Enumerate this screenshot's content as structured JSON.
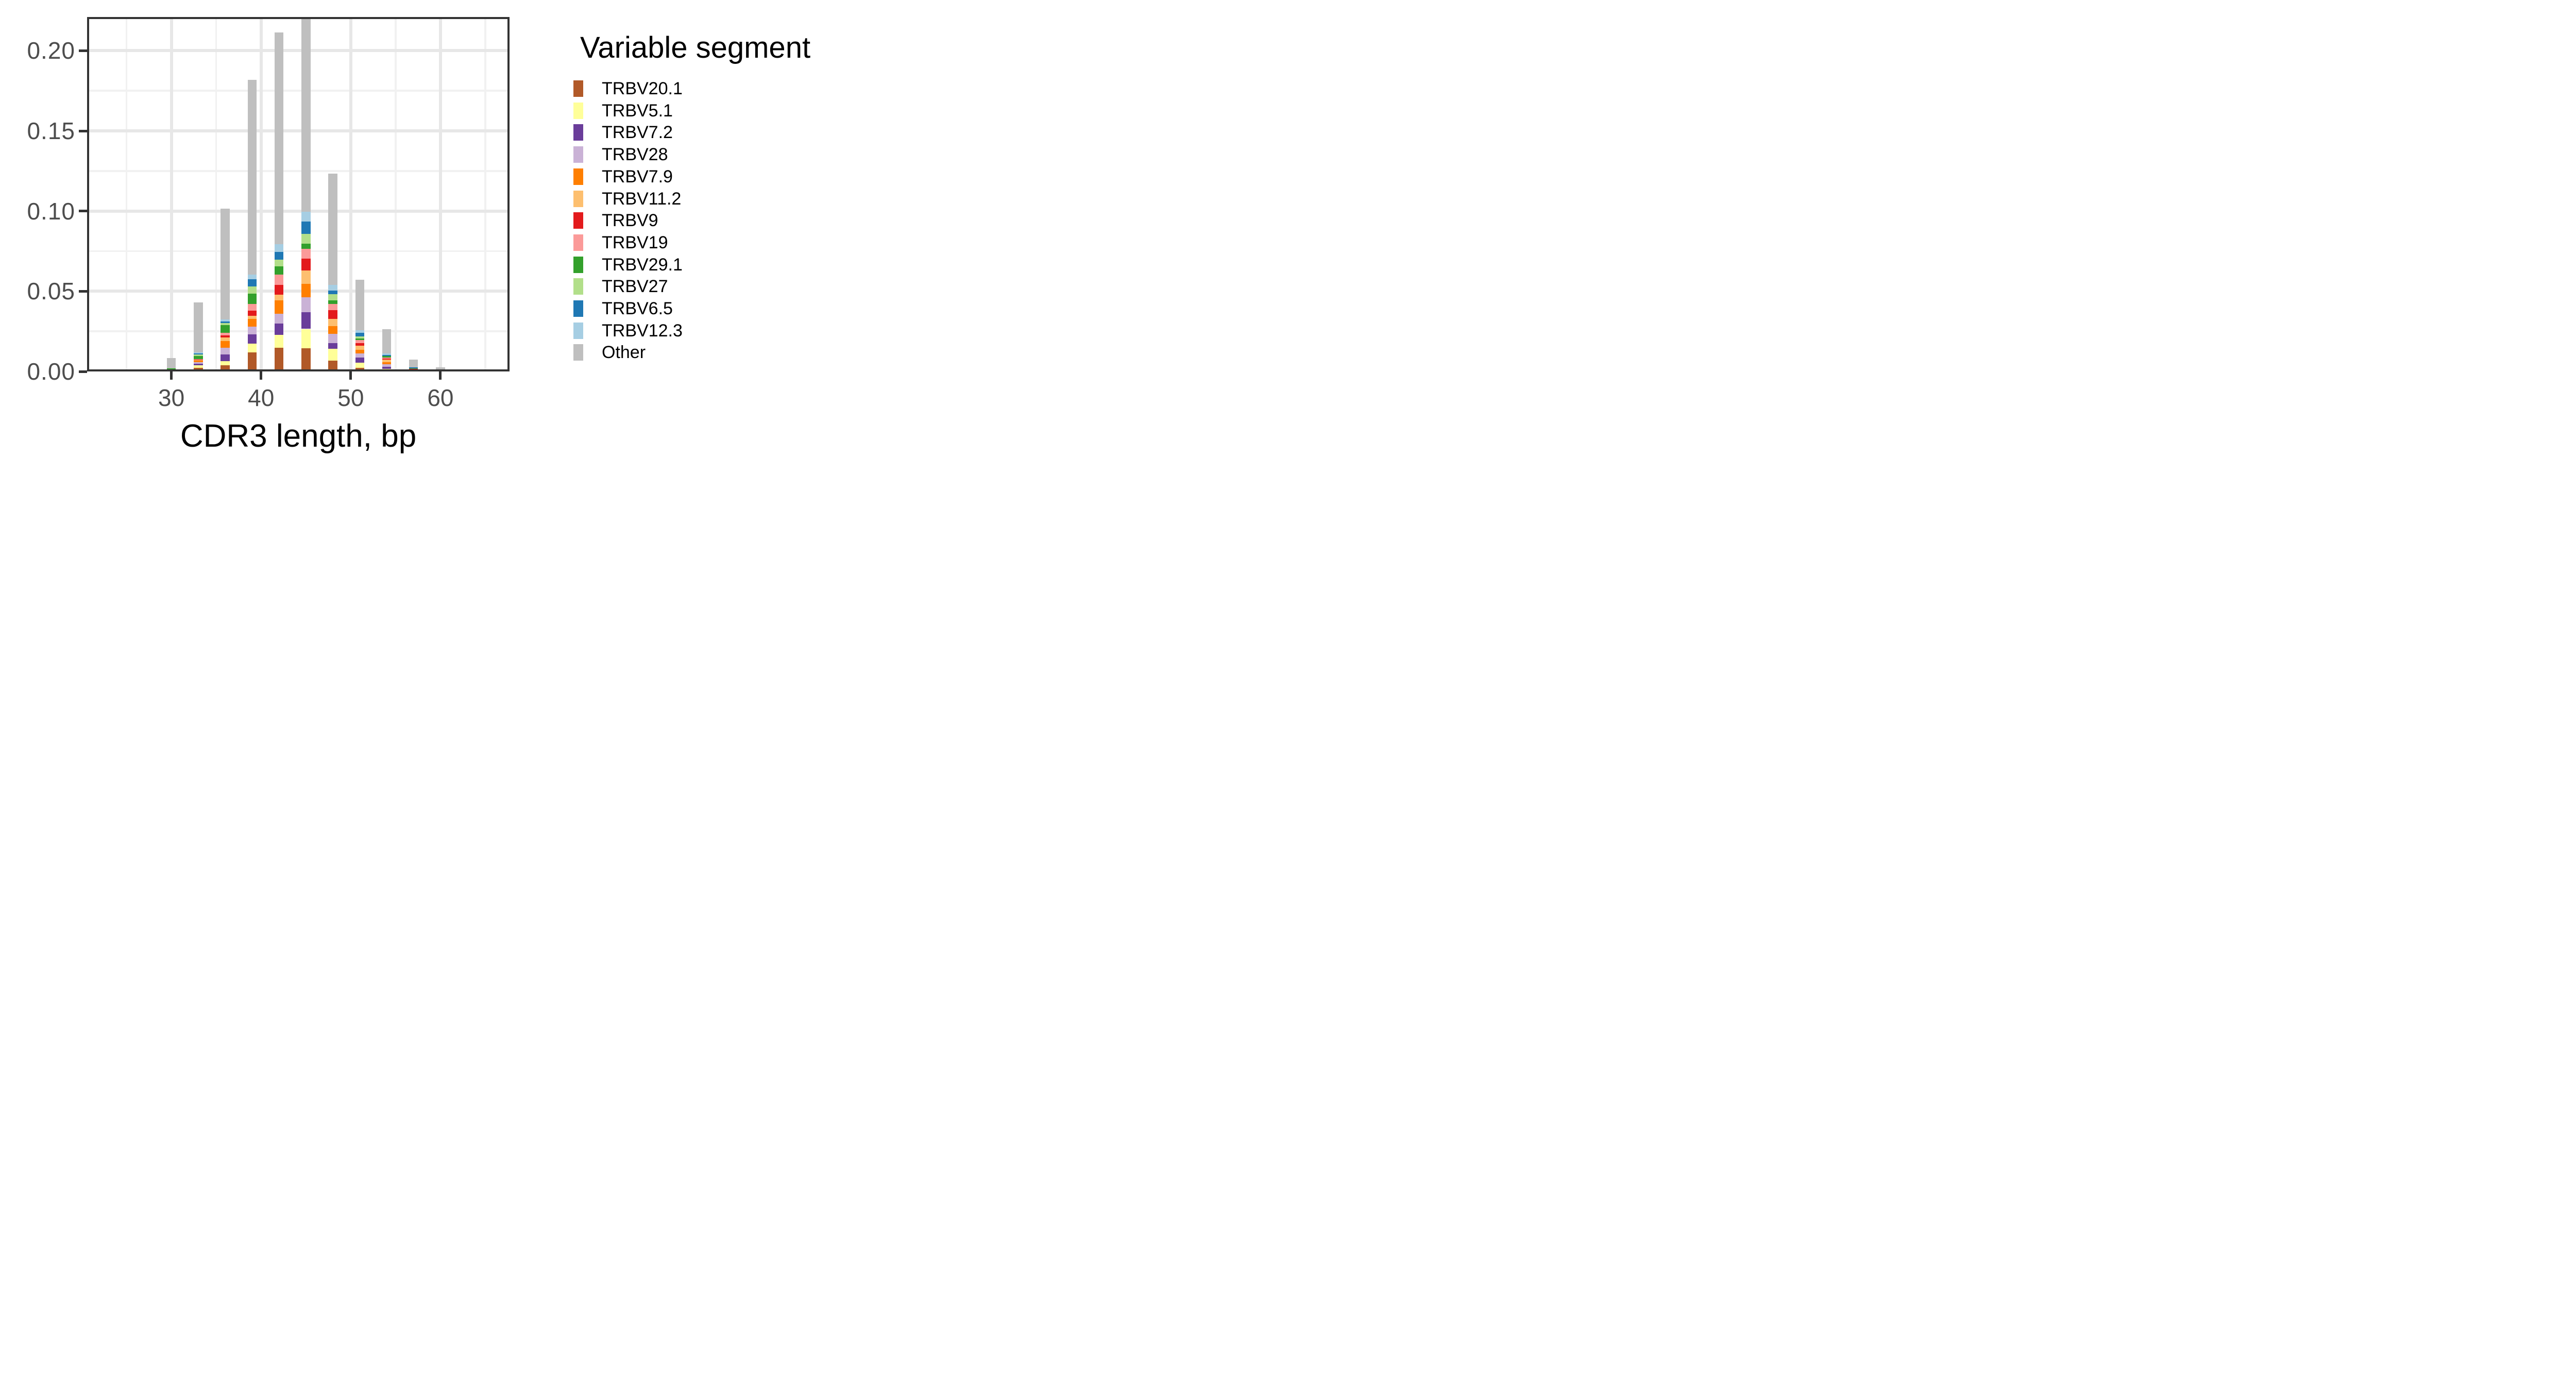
{
  "legend": {
    "title": "Variable segment",
    "position": "right"
  },
  "axes": {
    "x": {
      "title": "CDR3 length, bp",
      "tick_labels": [
        "30",
        "40",
        "50",
        "60"
      ]
    },
    "y": {
      "title": "",
      "tick_labels": [
        "0.00",
        "0.05",
        "0.10",
        "0.15",
        "0.20"
      ]
    }
  },
  "chart_data": {
    "type": "bar",
    "stacked": true,
    "title": "",
    "xlabel": "CDR3 length, bp",
    "ylabel": "",
    "grid": true,
    "legend_position": "right",
    "categories": [
      27,
      30,
      33,
      36,
      39,
      42,
      45,
      48,
      51,
      54,
      57,
      60
    ],
    "xlim": [
      20.6,
      67.7
    ],
    "ylim": [
      0,
      0.221
    ],
    "x_ticks": [
      30,
      40,
      50,
      60
    ],
    "x_minor_ticks": [
      25,
      35,
      45,
      55,
      65
    ],
    "y_ticks": {
      "values": [
        0,
        0.05,
        0.1,
        0.15,
        0.2
      ],
      "labels": [
        "0.00",
        "0.05",
        "0.10",
        "0.15",
        "0.20"
      ]
    },
    "y_minor_ticks": [
      0.025,
      0.075,
      0.125,
      0.175
    ],
    "clipped_categories": [
      45
    ],
    "series": [
      {
        "name": "TRBV20.1",
        "color": "#B15928",
        "values": [
          0,
          0.0005,
          0.0024,
          0.0039,
          0.0119,
          0.0147,
          0.0145,
          0.0069,
          0.0024,
          0.0007,
          0,
          0
        ]
      },
      {
        "name": "TRBV5.1",
        "color": "#FFFF99",
        "values": [
          0,
          0,
          0.0013,
          0.0025,
          0.0054,
          0.0082,
          0.012,
          0.0072,
          0.003,
          0.0008,
          0,
          0
        ]
      },
      {
        "name": "TRBV7.2",
        "color": "#6A3D9A",
        "values": [
          0,
          0,
          0.001,
          0.0042,
          0.0059,
          0.007,
          0.0106,
          0.0037,
          0.0033,
          0.0014,
          0.0003,
          0
        ]
      },
      {
        "name": "TRBV28",
        "color": "#CAB2D6",
        "values": [
          0,
          0,
          0.0012,
          0.0042,
          0.0049,
          0.0062,
          0.009,
          0.0057,
          0.0025,
          0.0015,
          0.0003,
          0
        ]
      },
      {
        "name": "TRBV7.9",
        "color": "#FF7F00",
        "values": [
          0,
          0.0005,
          0.0008,
          0.0042,
          0.0047,
          0.0083,
          0.0084,
          0.0049,
          0.0023,
          0.0015,
          0.0005,
          0.0003
        ]
      },
      {
        "name": "TRBV11.2",
        "color": "#FDBF6F",
        "values": [
          0,
          0.0003,
          0.0004,
          0.0022,
          0.002,
          0.0036,
          0.0084,
          0.0045,
          0.0027,
          0.0014,
          0,
          0
        ]
      },
      {
        "name": "TRBV9",
        "color": "#E31A1C",
        "values": [
          0,
          0,
          0.0002,
          0.0012,
          0.0031,
          0.006,
          0.0073,
          0.0054,
          0.0016,
          0.0007,
          0.0005,
          0
        ]
      },
      {
        "name": "TRBV19",
        "color": "#FB9A99",
        "values": [
          0,
          0,
          0.0003,
          0.0018,
          0.0041,
          0.0063,
          0.0063,
          0.0039,
          0.0018,
          0.0006,
          0,
          0
        ]
      },
      {
        "name": "TRBV29.1",
        "color": "#33A02C",
        "values": [
          0,
          0.0005,
          0.0019,
          0.0047,
          0.0066,
          0.0051,
          0.0032,
          0.002,
          0.0009,
          0.0009,
          0.0004,
          0.0003
        ]
      },
      {
        "name": "TRBV27",
        "color": "#B2DF8A",
        "values": [
          0,
          0,
          0.0011,
          0.0014,
          0.0045,
          0.0042,
          0.0062,
          0.0039,
          0.0014,
          0,
          0,
          0
        ]
      },
      {
        "name": "TRBV6.5",
        "color": "#1F78B4",
        "values": [
          0,
          0,
          0.0007,
          0.0008,
          0.0043,
          0.005,
          0.0077,
          0.0022,
          0.0021,
          0.0009,
          0.0005,
          0.0003
        ]
      },
      {
        "name": "TRBV12.3",
        "color": "#A6CEE3",
        "values": [
          0,
          0,
          0.0007,
          0.0012,
          0.0029,
          0.0046,
          0.0059,
          0.0037,
          0.0016,
          0.0007,
          0,
          0
        ]
      },
      {
        "name": "Other",
        "color": "#BFBFBF",
        "values": [
          0.0009,
          0.0066,
          0.031,
          0.0692,
          0.1214,
          0.1321,
          0.125,
          0.0695,
          0.0317,
          0.0154,
          0.005,
          0.0016
        ]
      }
    ]
  }
}
